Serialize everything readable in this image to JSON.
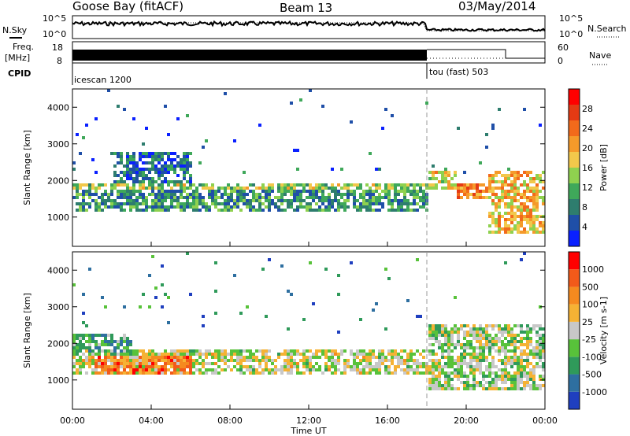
{
  "header": {
    "station": "Goose Bay (fitACF)",
    "beam": "Beam 13",
    "date": "03/May/2014"
  },
  "panel_labels": {
    "nsky": "N.Sky",
    "nsearch": "N.Search",
    "freq": "Freq.",
    "freq_unit": "[MHz]",
    "nave": "Nave",
    "cpid": "CPID",
    "cpid_mode_1": "icescan 1200",
    "cpid_mode_2": "tou (fast) 503"
  },
  "noise_axis": {
    "left_ticks": [
      "10^5",
      "10^0"
    ],
    "right_ticks": [
      "10^5",
      "10^0"
    ]
  },
  "freq_axis": {
    "left_ticks": [
      "18",
      "8"
    ],
    "right_ticks": [
      "60",
      "0"
    ]
  },
  "x_axis": {
    "label": "Time UT",
    "tick_labels": [
      "00:00",
      "04:00",
      "08:00",
      "12:00",
      "16:00",
      "20:00",
      "00:00"
    ],
    "tick_hours": [
      0,
      4,
      8,
      12,
      16,
      20,
      24
    ]
  },
  "chart_data": [
    {
      "type": "heatmap",
      "name": "power-panel",
      "ylabel": "Slant Range [km]",
      "xlabel": "",
      "x_range_hours": [
        0,
        24
      ],
      "ylim": [
        200,
        4500
      ],
      "y_ticks": [
        1000,
        2000,
        3000,
        4000
      ],
      "mode_change_hour": 18,
      "colorbar": {
        "label": "Power [dB]",
        "ticks": [
          "4",
          "8",
          "12",
          "16",
          "20",
          "24",
          "28"
        ],
        "colors": [
          "#0a20ff",
          "#1f4fa8",
          "#2e7d6e",
          "#3fa85a",
          "#8fd14f",
          "#f2c84b",
          "#f59a2a",
          "#f26a1b",
          "#e53a14",
          "#ff0000"
        ]
      },
      "bands": [
        {
          "t0": 0.0,
          "t1": 18.0,
          "r0": 1200,
          "r1": 1800,
          "level": 0.3
        },
        {
          "t0": 0.0,
          "t1": 18.0,
          "r0": 1800,
          "r1": 2000,
          "level": 0.45
        },
        {
          "t0": 2.0,
          "t1": 6.0,
          "r0": 2000,
          "r1": 2800,
          "level": 0.2
        },
        {
          "t0": 18.0,
          "t1": 19.5,
          "r0": 1800,
          "r1": 2300,
          "level": 0.55
        },
        {
          "t0": 19.5,
          "t1": 21.0,
          "r0": 1500,
          "r1": 2000,
          "level": 0.7
        },
        {
          "t0": 21.0,
          "t1": 24.0,
          "r0": 600,
          "r1": 2300,
          "level": 0.6
        }
      ]
    },
    {
      "type": "heatmap",
      "name": "velocity-panel",
      "ylabel": "Slant Range [km]",
      "xlabel": "Time UT",
      "x_range_hours": [
        0,
        24
      ],
      "ylim": [
        200,
        4500
      ],
      "y_ticks": [
        1000,
        2000,
        3000,
        4000
      ],
      "mode_change_hour": 18,
      "colorbar": {
        "label": "Velocity [m s-1]",
        "ticks": [
          "1000",
          "500",
          "100",
          "25",
          "-25",
          "-100",
          "-500",
          "-1000"
        ],
        "colors": [
          "#1f3fbf",
          "#2e6fa0",
          "#2f9a5a",
          "#58c23a",
          "#c8c8c8",
          "#f5b234",
          "#f58a1f",
          "#f25a1a",
          "#ff0000"
        ]
      },
      "bands": [
        {
          "t0": 0.0,
          "t1": 18.0,
          "r0": 1200,
          "r1": 1900,
          "level": 0.5
        },
        {
          "t0": 1.0,
          "t1": 6.0,
          "r0": 1200,
          "r1": 1700,
          "level": 0.75
        },
        {
          "t0": 0.0,
          "t1": 3.0,
          "r0": 1700,
          "r1": 2300,
          "level": 0.3
        },
        {
          "t0": 18.0,
          "t1": 24.0,
          "r0": 800,
          "r1": 2600,
          "level": 0.45
        }
      ]
    }
  ]
}
